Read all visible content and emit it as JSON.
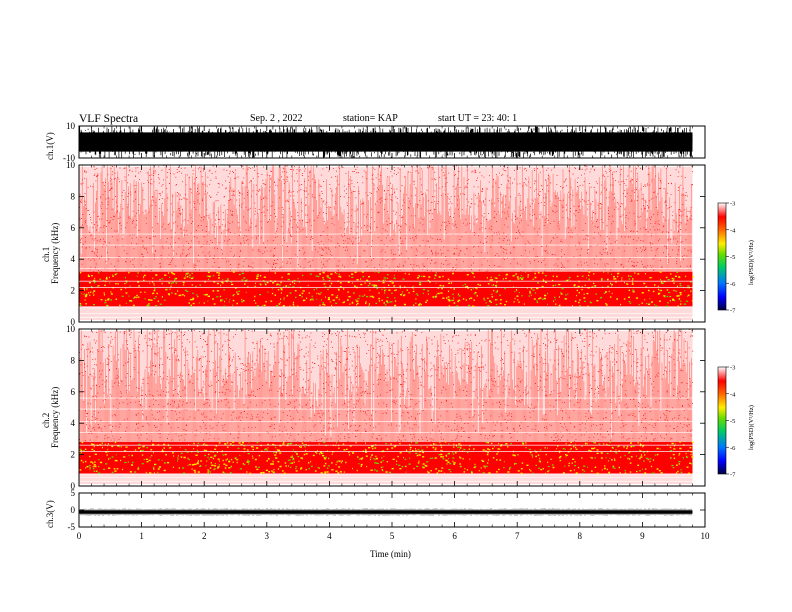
{
  "header": {
    "title": "VLF Spectra",
    "date": "Sep. 2 , 2022",
    "station": "station= KAP",
    "start": "start  UT =   23: 40: 1"
  },
  "colors": {
    "background": "#ffffff",
    "axis": "#000000",
    "spectrum_high": "#ff0000",
    "spectrum_mid": "#ff3a2a",
    "spectrum_green": "#66dd00",
    "spectrum_yellow": "#ffee00"
  },
  "chart_data": [
    {
      "type": "line",
      "name": "ch1-waveform",
      "ylabel": "ch.1(V)",
      "ylim": [
        -10,
        10
      ],
      "yticks": [
        "10",
        "-10"
      ],
      "xlim": [
        0,
        10
      ],
      "description_values": "dense waveform saturating between -10 and 10 V over 0–9.8 min"
    },
    {
      "type": "heatmap",
      "name": "ch1-spectrogram",
      "ylabel": "ch.1\nFrequency  (kHz)",
      "ylim": [
        0,
        10
      ],
      "yticks": [
        "0",
        "2",
        "4",
        "6",
        "8",
        "10"
      ],
      "xlim": [
        0,
        10
      ],
      "data_end_min": 9.8,
      "colorbar": {
        "label": "log(PSD)(V²/Hz)",
        "range": [
          -7,
          -3
        ],
        "ticks": [
          "-3",
          "-4",
          "-5",
          "-6",
          "-7"
        ]
      },
      "band_strong_khz": [
        1.0,
        3.2
      ]
    },
    {
      "type": "heatmap",
      "name": "ch2-spectrogram",
      "ylabel": "ch.2\nFrequency  (kHz)",
      "ylim": [
        0,
        10
      ],
      "yticks": [
        "0",
        "2",
        "4",
        "6",
        "8",
        "10"
      ],
      "xlim": [
        0,
        10
      ],
      "data_end_min": 9.8,
      "colorbar": {
        "label": "log(PSD)(V²/Hz)",
        "range": [
          -7,
          -3
        ],
        "ticks": [
          "-3",
          "-4",
          "-5",
          "-6",
          "-7"
        ]
      },
      "band_strong_khz": [
        0.8,
        2.8
      ]
    },
    {
      "type": "line",
      "name": "ch3-waveform",
      "ylabel": "ch.3(V)",
      "ylim": [
        -5,
        5
      ],
      "yticks": [
        "5",
        "0",
        "-5"
      ],
      "xlim": [
        0,
        10
      ],
      "description_values": "near-constant trace around -0.6 V"
    }
  ],
  "xaxis": {
    "label": "Time  (min)",
    "ticks": [
      "0",
      "1",
      "2",
      "3",
      "4",
      "5",
      "6",
      "7",
      "8",
      "9",
      "10"
    ]
  }
}
